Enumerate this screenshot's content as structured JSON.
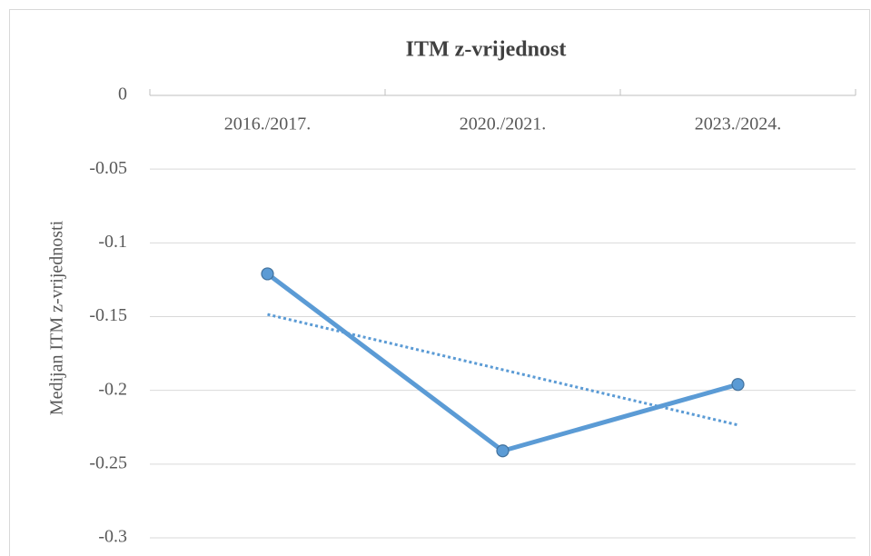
{
  "chart_data": {
    "type": "line",
    "title": "ITM z-vrijednost",
    "y_label": "Medijan ITM z-vrijednosti",
    "categories": [
      "2016./2017.",
      "2020./2021.",
      "2023./2024."
    ],
    "series": [
      {
        "name": "Medijan ITM z-vrijednosti",
        "color": "#5b9bd5",
        "values": [
          -0.121,
          -0.241,
          -0.196
        ]
      }
    ],
    "ylim": [
      -0.3,
      0
    ],
    "yticks": [
      0,
      -0.05,
      -0.1,
      -0.15,
      -0.2,
      -0.25,
      -0.3
    ],
    "grid": true,
    "trendline": true,
    "legend": false
  }
}
